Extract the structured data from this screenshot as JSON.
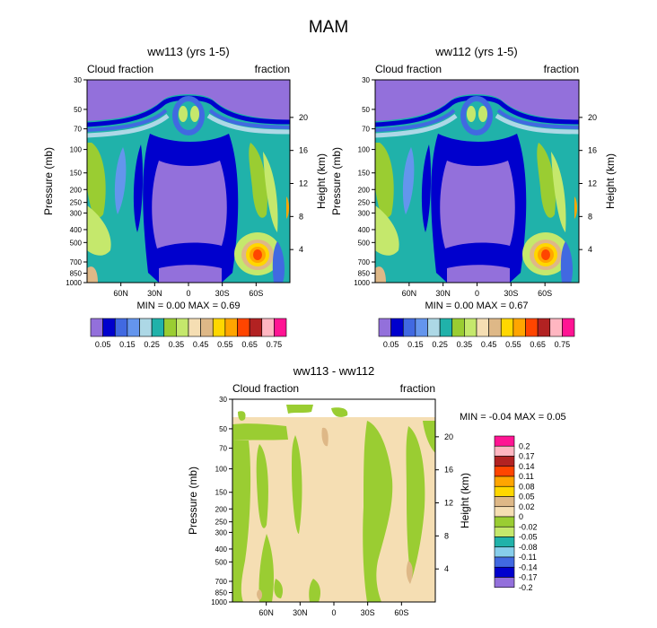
{
  "page_title": "MAM",
  "colors": {
    "base": [
      "#9370db",
      "#0000cd",
      "#4169e1",
      "#6495ed",
      "#add8e6",
      "#20b2aa",
      "#9acd32",
      "#c5e86c",
      "#f5deb3",
      "#deb887",
      "#ffd700",
      "#ffa500",
      "#ff4500",
      "#b22222",
      "#ffb6c1",
      "#ff1493"
    ],
    "diff": [
      "#9370db",
      "#0000cd",
      "#4169e1",
      "#87ceeb",
      "#20b2aa",
      "#9acd32",
      "#c5e86c",
      "#f5deb3",
      "#deb887",
      "#ffd700",
      "#ffa500",
      "#ff4500",
      "#b22222",
      "#ffb6c1",
      "#ff1493"
    ]
  },
  "chart_data": [
    {
      "type": "heatmap",
      "title": "ww113 (yrs 1-5)",
      "subtitle_left": "Cloud fraction",
      "subtitle_right": "fraction",
      "ylabel": "Pressure (mb)",
      "ylabel_right": "Height (km)",
      "y_ticks": [
        "30",
        "50",
        "70",
        "100",
        "150",
        "200",
        "250",
        "300",
        "400",
        "500",
        "700",
        "850",
        "1000"
      ],
      "y_right_ticks": [
        "20",
        "16",
        "12",
        "8",
        "4"
      ],
      "x_ticks": [
        "60N",
        "30N",
        "0",
        "30S",
        "60S"
      ],
      "stats_text": "MIN =   0.00   MAX =   0.69",
      "min": 0.0,
      "max": 0.69,
      "colorbar_labels": [
        "0.05",
        "0.15",
        "0.25",
        "0.35",
        "0.45",
        "0.55",
        "0.65",
        "0.75"
      ]
    },
    {
      "type": "heatmap",
      "title": "ww112 (yrs 1-5)",
      "subtitle_left": "Cloud fraction",
      "subtitle_right": "fraction",
      "ylabel": "Pressure (mb)",
      "ylabel_right": "Height (km)",
      "y_ticks": [
        "30",
        "50",
        "70",
        "100",
        "150",
        "200",
        "250",
        "300",
        "400",
        "500",
        "700",
        "850",
        "1000"
      ],
      "y_right_ticks": [
        "20",
        "16",
        "12",
        "8",
        "4"
      ],
      "x_ticks": [
        "60N",
        "30N",
        "0",
        "30S",
        "60S"
      ],
      "stats_text": "MIN =   0.00   MAX =   0.67",
      "min": 0.0,
      "max": 0.67,
      "colorbar_labels": [
        "0.05",
        "0.15",
        "0.25",
        "0.35",
        "0.45",
        "0.55",
        "0.65",
        "0.75"
      ]
    },
    {
      "type": "heatmap",
      "title": "ww113 - ww112",
      "subtitle_left": "Cloud fraction",
      "subtitle_right": "fraction",
      "ylabel": "Pressure (mb)",
      "ylabel_right": "Height (km)",
      "y_ticks": [
        "30",
        "50",
        "70",
        "100",
        "150",
        "200",
        "250",
        "300",
        "400",
        "500",
        "700",
        "850",
        "1000"
      ],
      "y_right_ticks": [
        "20",
        "16",
        "12",
        "8",
        "4"
      ],
      "x_ticks": [
        "60N",
        "30N",
        "0",
        "30S",
        "60S"
      ],
      "stats_text": "MIN =   -0.04   MAX =   0.05",
      "min": -0.04,
      "max": 0.05,
      "colorbar_labels": [
        "0.2",
        "0.17",
        "0.14",
        "0.11",
        "0.08",
        "0.05",
        "0.02",
        "0",
        "-0.02",
        "-0.05",
        "-0.08",
        "-0.11",
        "-0.14",
        "-0.17",
        "-0.2"
      ]
    }
  ]
}
